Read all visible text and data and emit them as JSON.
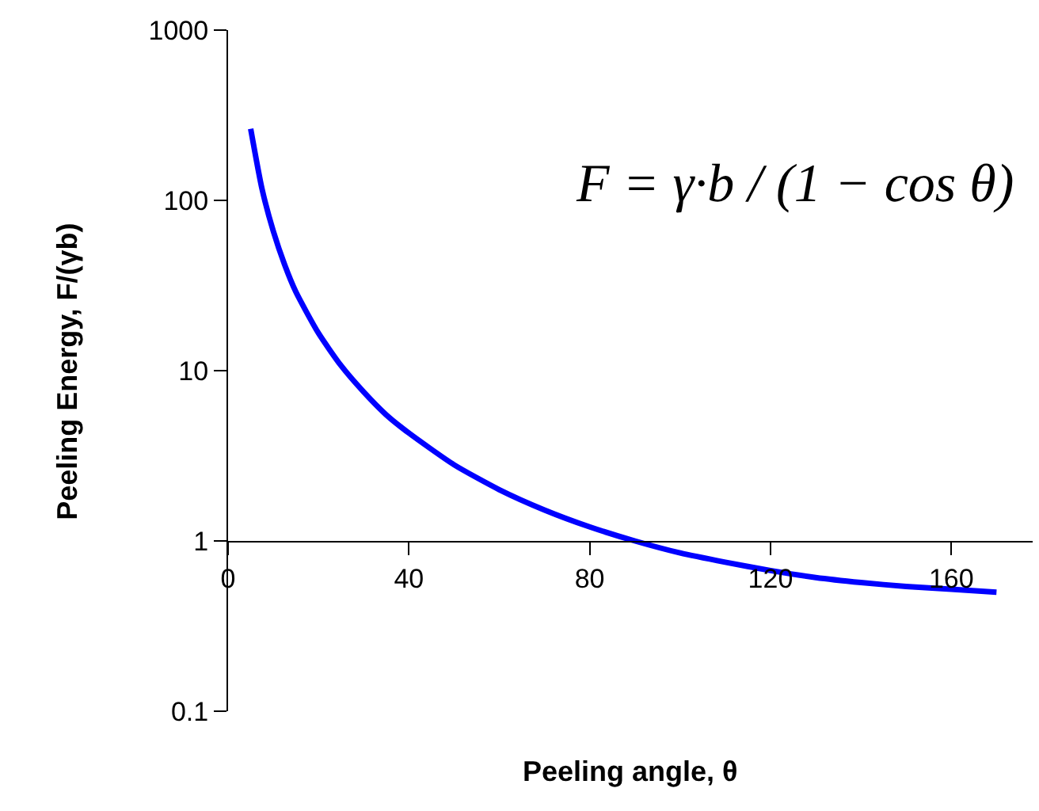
{
  "chart_data": {
    "type": "line",
    "xlabel": "Peeling angle, θ",
    "ylabel": "Peeling Energy, F/(γb)",
    "annotations": [
      "F = γ·b / (1 − cos θ)"
    ],
    "x": [
      5,
      7.5,
      10,
      12.5,
      15,
      20,
      25,
      30,
      35,
      40,
      50,
      60,
      70,
      80,
      90,
      100,
      110,
      120,
      130,
      140,
      150,
      160,
      170
    ],
    "series": [
      {
        "color": "#0000ff",
        "values": [
          263,
          117,
          66,
          42,
          29,
          16.6,
          10.7,
          7.5,
          5.5,
          4.3,
          2.8,
          2.0,
          1.52,
          1.21,
          1.0,
          0.85,
          0.75,
          0.67,
          0.61,
          0.57,
          0.54,
          0.52,
          0.5
        ]
      }
    ],
    "log": "y",
    "xlim": [
      0,
      178
    ],
    "ylim": [
      0.1,
      1000
    ],
    "xticks": [
      0,
      40,
      80,
      120,
      160
    ],
    "yticks": [
      0.1,
      1,
      10,
      100,
      1000
    ],
    "grid": false,
    "legend": false,
    "marker": "none",
    "line_style": "solid"
  }
}
